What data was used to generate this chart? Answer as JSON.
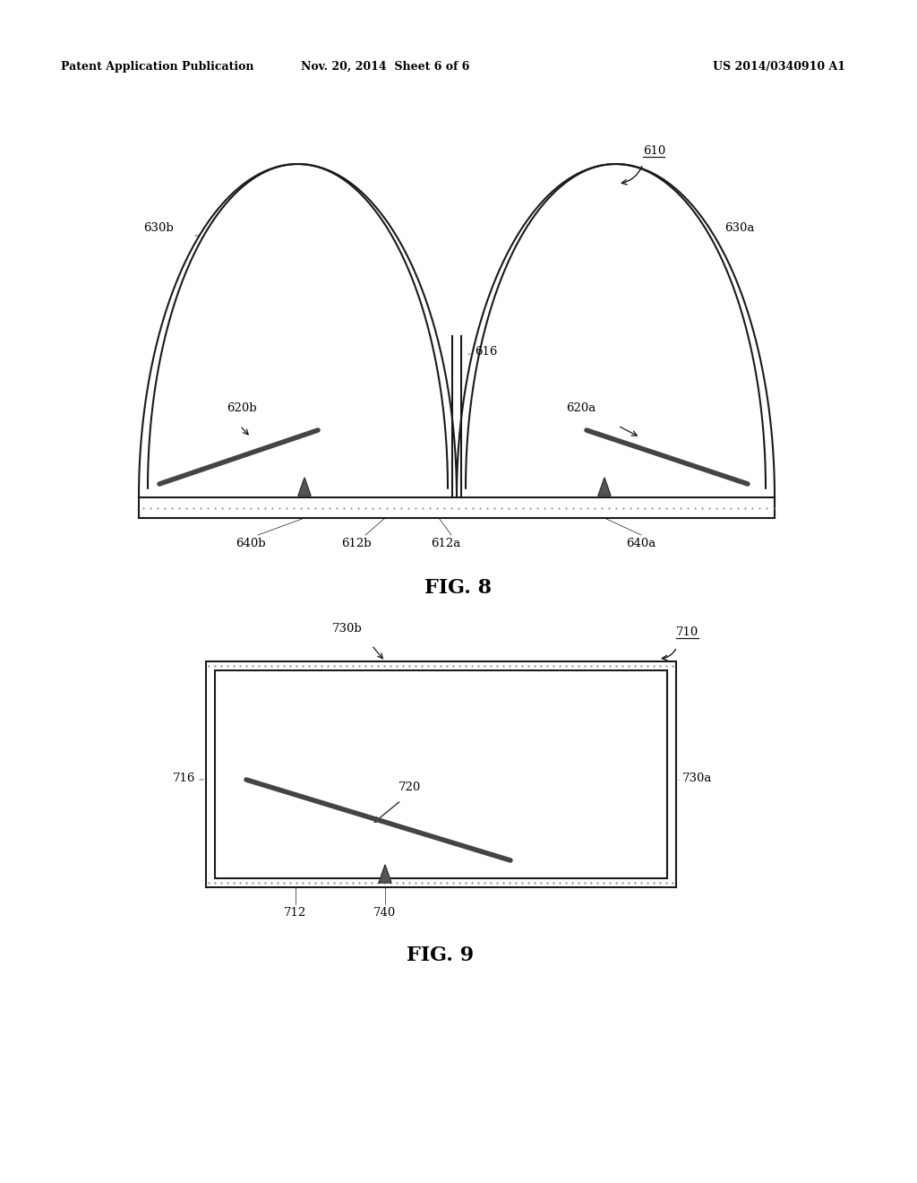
{
  "header_left": "Patent Application Publication",
  "header_mid": "Nov. 20, 2014  Sheet 6 of 6",
  "header_right": "US 2014/0340910 A1",
  "bg_color": "#ffffff",
  "line_color": "#1a1a1a",
  "fig8_caption": "FIG. 8",
  "fig9_caption": "FIG. 9"
}
